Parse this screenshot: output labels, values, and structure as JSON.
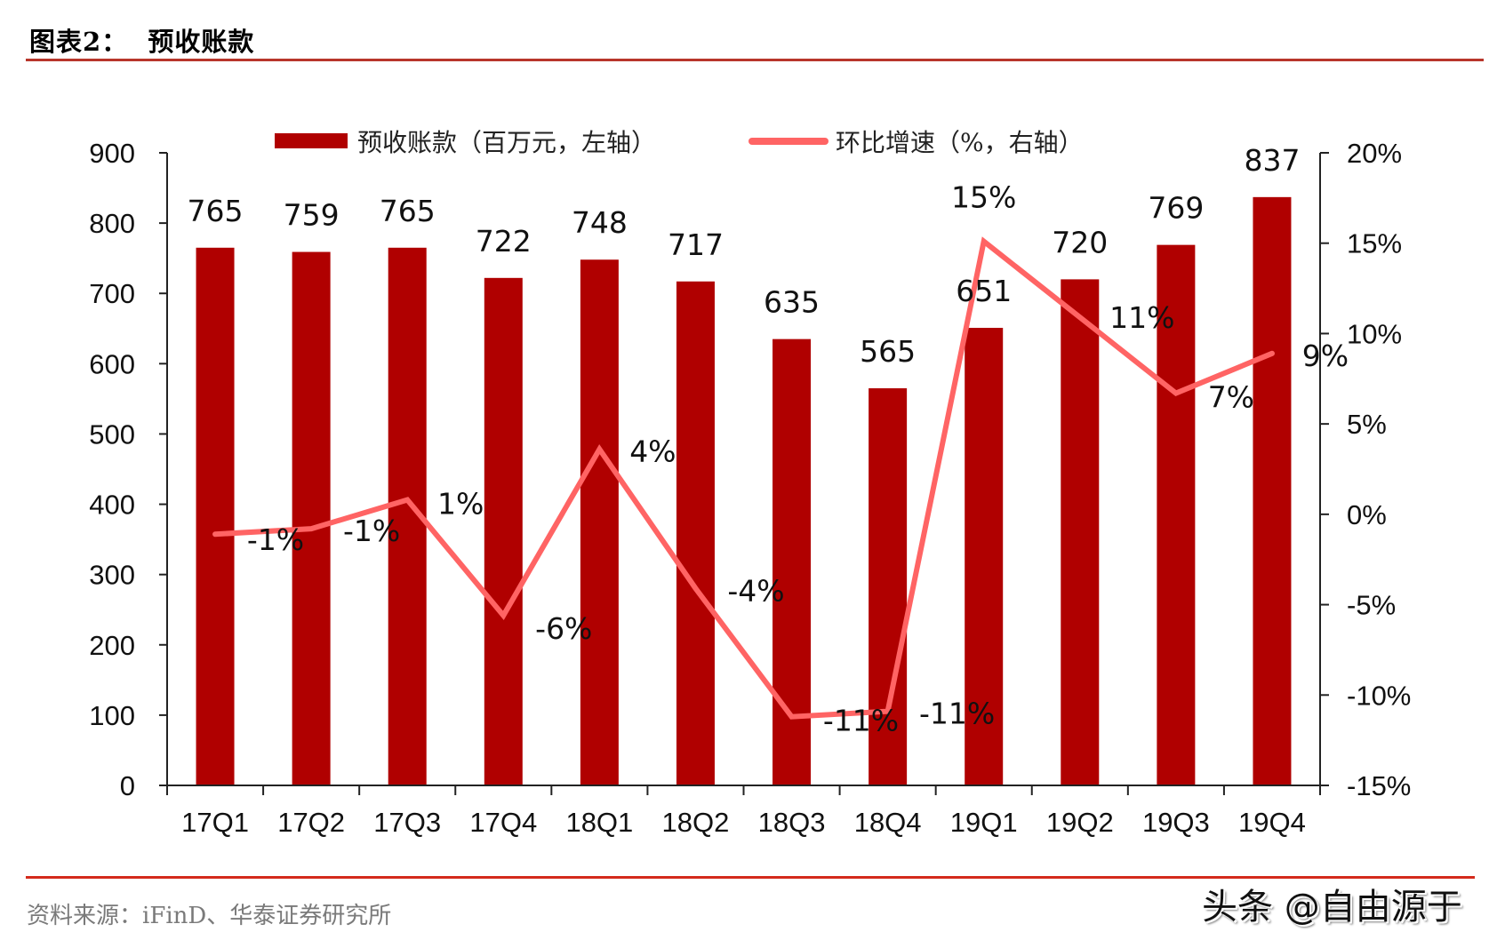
{
  "header": {
    "title": "图表2：  预收账款"
  },
  "footer": {
    "source": "资料来源：iFinD、华泰证券研究所",
    "watermark": "头条 @自由源于"
  },
  "colors": {
    "bar": "#b00000",
    "line": "#ff6464",
    "rule_top": "#b8362b",
    "rule_bottom": "#d42a1c"
  },
  "chart_data": {
    "type": "bar+line",
    "title": "预收账款",
    "categories": [
      "17Q1",
      "17Q2",
      "17Q3",
      "17Q4",
      "18Q1",
      "18Q2",
      "18Q3",
      "18Q4",
      "19Q1",
      "19Q2",
      "19Q3",
      "19Q4"
    ],
    "series": [
      {
        "name": "预收账款（百万元，左轴）",
        "type": "bar",
        "axis": "left",
        "values": [
          765,
          759,
          765,
          722,
          748,
          717,
          635,
          565,
          651,
          720,
          769,
          837
        ],
        "labels": [
          "765",
          "759",
          "765",
          "722",
          "748",
          "717",
          "635",
          "565",
          "651",
          "720",
          "769",
          "837"
        ]
      },
      {
        "name": "环比增速（%，右轴）",
        "type": "line",
        "axis": "right",
        "values": [
          -1.1,
          -0.8,
          0.8,
          -5.6,
          3.6,
          -4.1,
          -11.2,
          -10.9,
          15.1,
          10.9,
          6.7,
          8.9
        ],
        "labels": [
          "-1%",
          "-1%",
          "1%",
          "-6%",
          "4%",
          "-4%",
          "-11%",
          "-11%",
          "15%",
          "11%",
          "7%",
          "9%"
        ]
      }
    ],
    "left_axis": {
      "ylim": [
        0,
        900
      ],
      "ticks": [
        0,
        100,
        200,
        300,
        400,
        500,
        600,
        700,
        800,
        900
      ],
      "tick_labels": [
        "0",
        "100",
        "200",
        "300",
        "400",
        "500",
        "600",
        "700",
        "800",
        "900"
      ]
    },
    "right_axis": {
      "ylim": [
        -15,
        20
      ],
      "ticks": [
        -15,
        -10,
        -5,
        0,
        5,
        10,
        15,
        20
      ],
      "tick_labels": [
        "-15%",
        "-10%",
        "-5%",
        "0%",
        "5%",
        "10%",
        "15%",
        "20%"
      ]
    },
    "xlabel": "",
    "ylabel": "",
    "grid": false,
    "legend_position": "top",
    "legend": [
      "预收账款（百万元，左轴）",
      "环比增速（%，右轴）"
    ]
  }
}
